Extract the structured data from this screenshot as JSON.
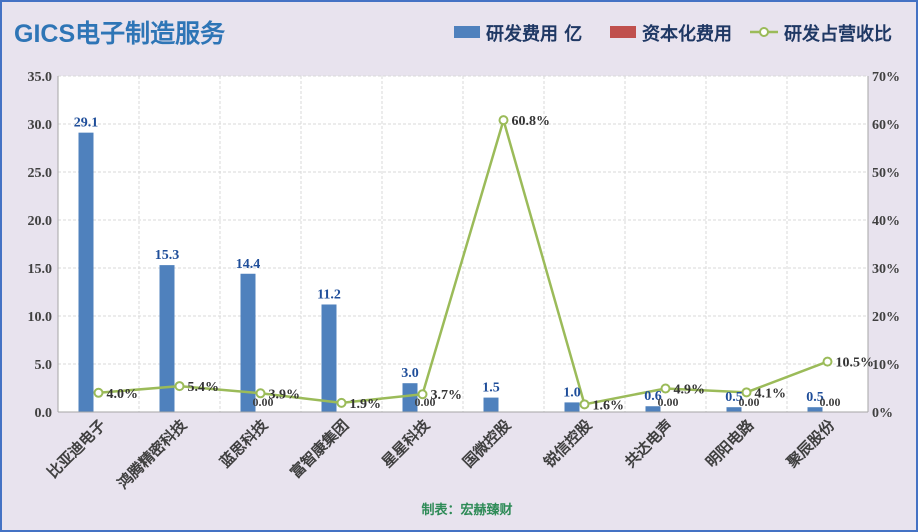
{
  "header": {
    "title": "GICS电子制造服务"
  },
  "footer": {
    "source": "制表：宏赫臻财"
  },
  "colors": {
    "rd": "#4f81bd",
    "cap": "#c0504d",
    "ratio": "#9bbb59",
    "title": "#2e75b6"
  },
  "chart_data": {
    "type": "bar",
    "categories": [
      "比亚迪电子",
      "鸿腾精密科技",
      "蓝思科技",
      "富智康集团",
      "星星科技",
      "国微控股",
      "锐信控股",
      "共达电声",
      "明阳电路",
      "聚辰股份"
    ],
    "series": [
      {
        "name": "研发费用 亿",
        "type": "bar",
        "axis": "left",
        "values": [
          29.1,
          15.3,
          14.4,
          11.2,
          3.0,
          1.5,
          1.0,
          0.6,
          0.5,
          0.5
        ],
        "labels": [
          "29.1",
          "15.3",
          "14.4",
          "11.2",
          "3.0",
          "1.5",
          "1.0",
          "0.6",
          "0.5",
          "0.5"
        ]
      },
      {
        "name": "资本化费用",
        "type": "bar",
        "axis": "left",
        "values": [
          null,
          null,
          0.0,
          null,
          0.0,
          null,
          null,
          0.0,
          0.0,
          0.0
        ],
        "labels": [
          "",
          "",
          "0.00",
          "",
          "0.00",
          "",
          "",
          "0.00",
          "0.00",
          "0.00"
        ]
      },
      {
        "name": "研发占营收比",
        "type": "line",
        "axis": "right",
        "values": [
          4.0,
          5.4,
          3.9,
          1.9,
          3.7,
          60.8,
          1.6,
          4.9,
          4.1,
          10.5
        ],
        "labels": [
          "4.0%",
          "5.4%",
          "3.9%",
          "1.9%",
          "3.7%",
          "60.8%",
          "1.6%",
          "4.9%",
          "4.1%",
          "10.5%"
        ]
      }
    ],
    "y_left": {
      "min": 0,
      "max": 35,
      "step": 5,
      "ticks": [
        "0.0",
        "5.0",
        "10.0",
        "15.0",
        "20.0",
        "25.0",
        "30.0",
        "35.0"
      ]
    },
    "y_right": {
      "min": 0,
      "max": 70,
      "step": 10,
      "ticks": [
        "0%",
        "10%",
        "20%",
        "30%",
        "40%",
        "50%",
        "60%",
        "70%"
      ]
    },
    "grid": true,
    "legend": "top-right"
  }
}
